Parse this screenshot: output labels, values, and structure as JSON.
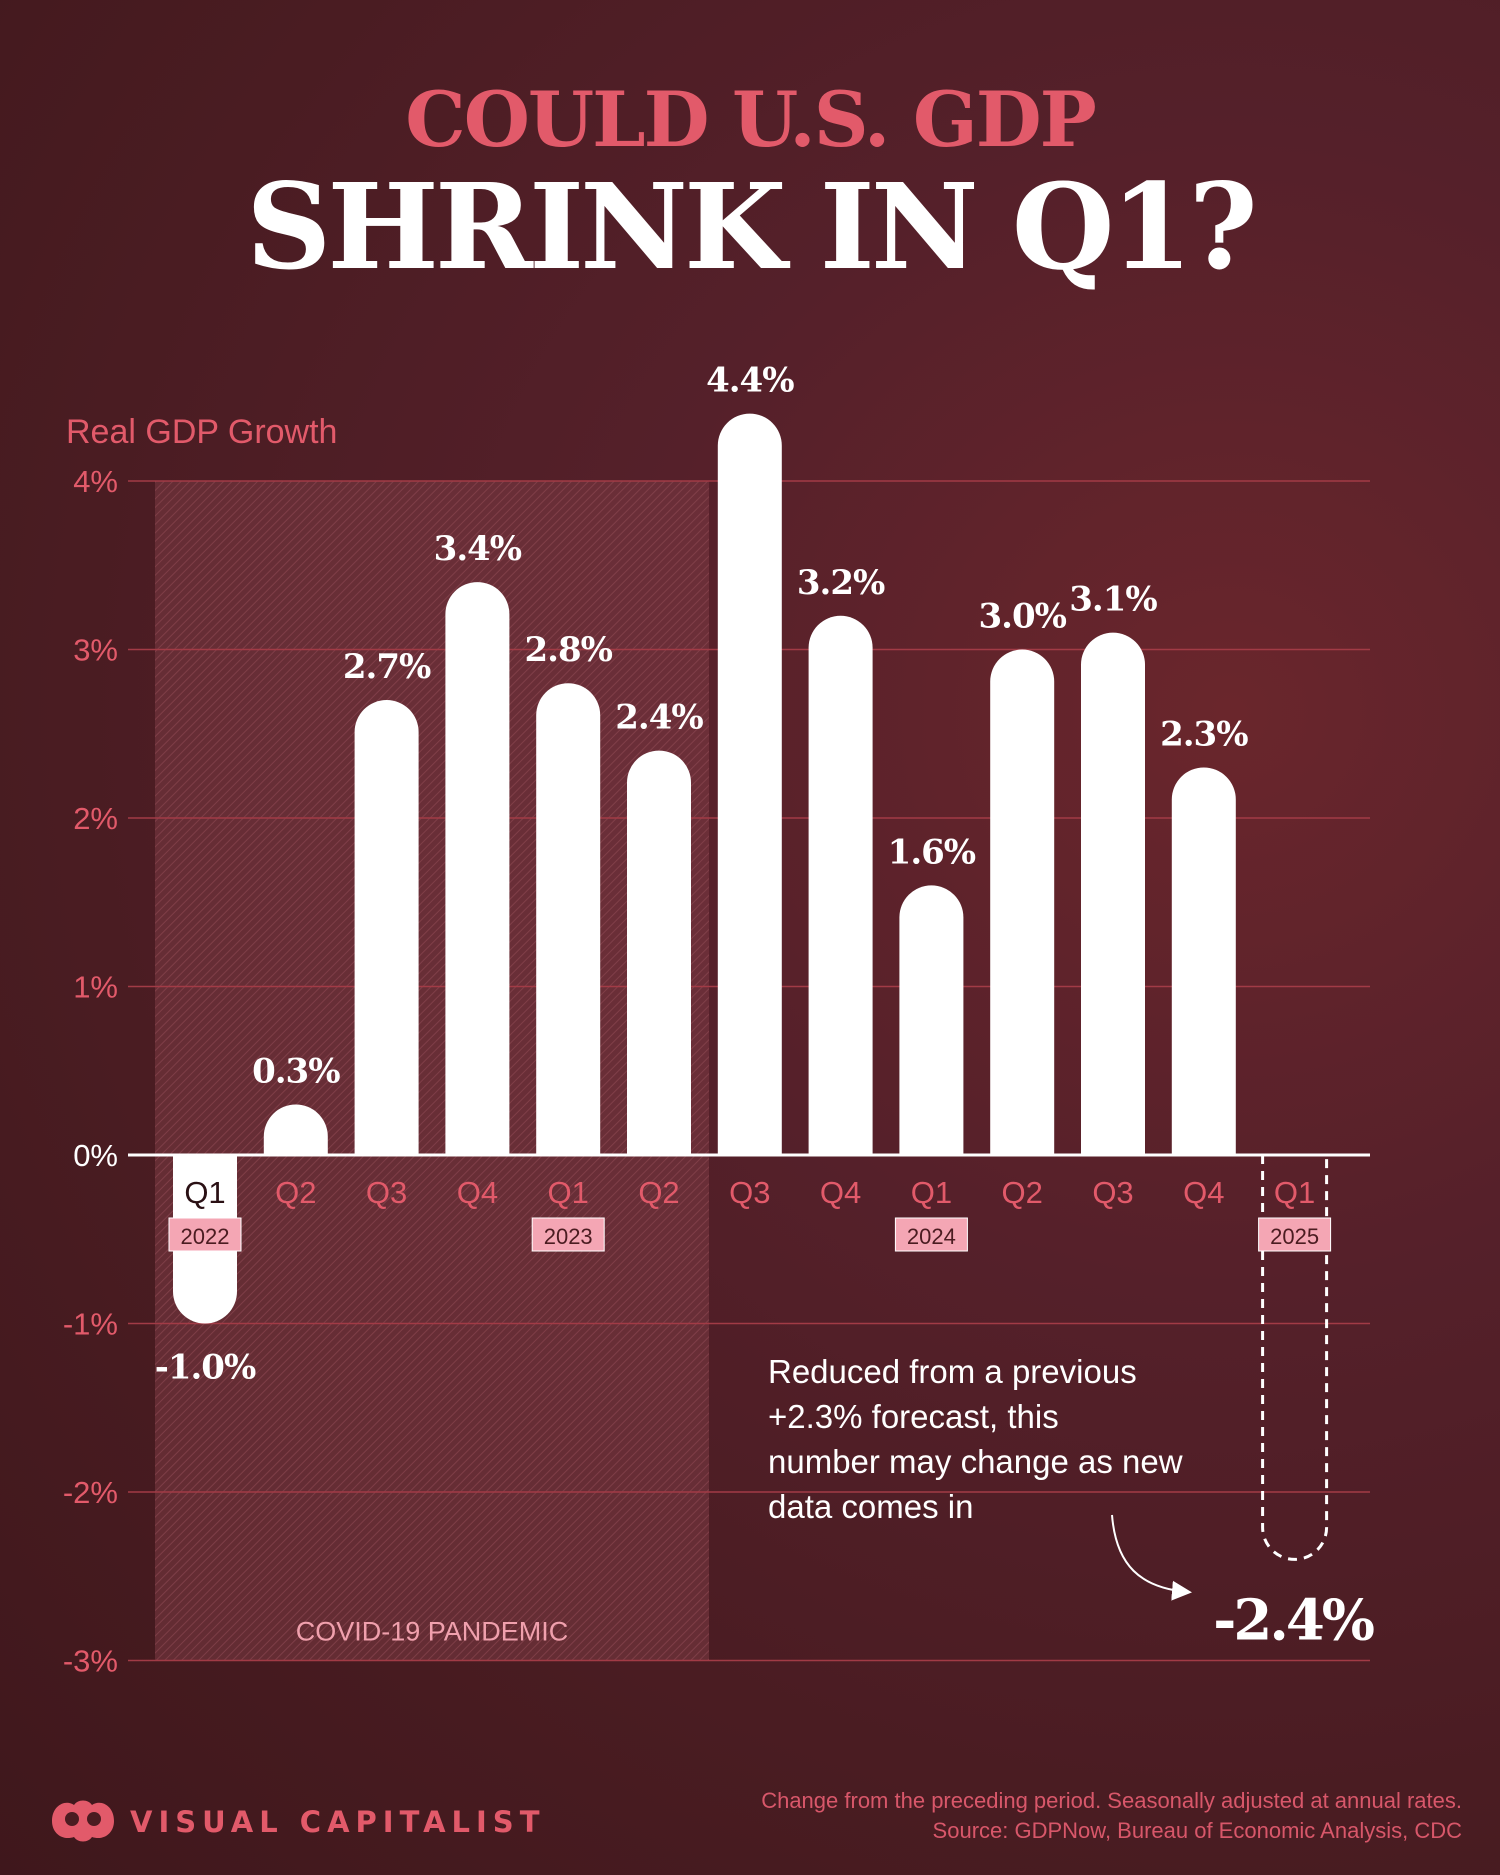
{
  "title": {
    "line1": "COULD U.S. GDP",
    "line2": "SHRINK IN Q1?"
  },
  "chart_data": {
    "type": "bar",
    "ylabel": "Real GDP Growth",
    "ylim": [
      -3,
      4
    ],
    "yticks": [
      4,
      3,
      2,
      1,
      0,
      -1,
      -2,
      -3
    ],
    "ytick_labels": [
      "4%",
      "3%",
      "2%",
      "1%",
      "0%",
      "-1%",
      "-2%",
      "-3%"
    ],
    "grid": true,
    "categories": [
      "Q1",
      "Q2",
      "Q3",
      "Q4",
      "Q1",
      "Q2",
      "Q3",
      "Q4",
      "Q1",
      "Q2",
      "Q3",
      "Q4",
      "Q1"
    ],
    "years": [
      "2022",
      "",
      "",
      "",
      "2023",
      "",
      "",
      "",
      "2024",
      "",
      "",
      "",
      "2025"
    ],
    "values": [
      -1.0,
      0.3,
      2.7,
      3.4,
      2.8,
      2.4,
      4.4,
      3.2,
      1.6,
      3.0,
      3.1,
      2.3,
      -2.4
    ],
    "value_labels": [
      "-1.0%",
      "0.3%",
      "2.7%",
      "3.4%",
      "2.8%",
      "2.4%",
      "4.4%",
      "3.2%",
      "1.6%",
      "3.0%",
      "3.1%",
      "2.3%",
      "-2.4%"
    ],
    "forecast_index": 12,
    "shaded_region": {
      "label": "COVID-19 PANDEMIC",
      "from_category_index": 0,
      "to_category_index": 5
    },
    "annotation": "Reduced from a previous +2.3% forecast, this number may change as new data comes in",
    "colors": {
      "bar": "#ffffff",
      "accent": "#e25a6a",
      "gridline": "#a23b46",
      "year_badge": "#f4a6b4",
      "background": "#4b1c21"
    }
  },
  "footer": {
    "brand": "VISUAL CAPITALIST",
    "note": "Change from the preceding period. Seasonally adjusted at annual rates.",
    "source": "Source: GDPNow, Bureau of Economic Analysis, CDC"
  }
}
